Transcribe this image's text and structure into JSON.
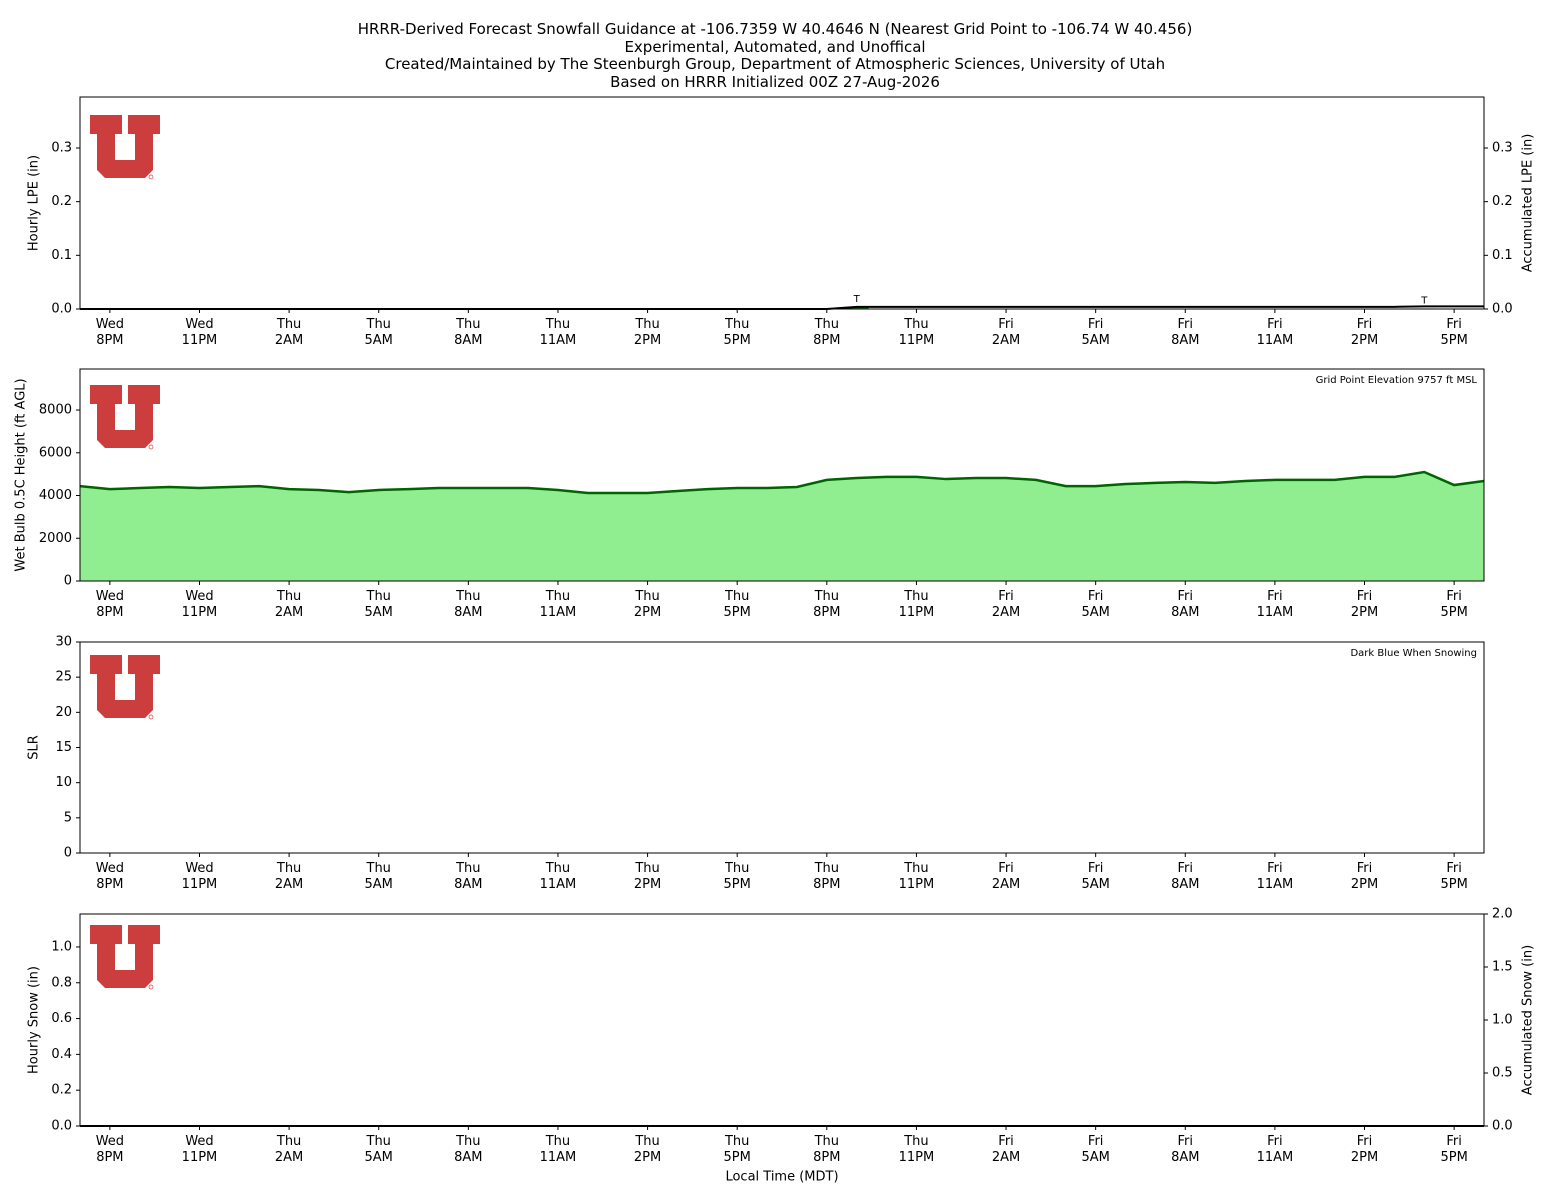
{
  "chart_data": [
    {
      "type": "bar",
      "title": "HRRR-Derived Forecast Snowfall Guidance at -106.7359 W 40.4646 N (Nearest Grid Point to -106.74 W 40.456)\nExperimental, Automated, and Unoffical\nCreated/Maintained by The Steenburgh Group, Department of Atmospheric Sciences, University of Utah\nBased on HRRR Initialized 00Z 27-Aug-2026",
      "ylabel": "Hourly LPE (in)",
      "y2label": "Accumulated LPE (in)",
      "categories": [
        null,
        "Wed\n8PM",
        null,
        null,
        "Wed\n11PM",
        null,
        null,
        "Thu\n2AM",
        null,
        null,
        "Thu\n5AM",
        null,
        null,
        "Thu\n8AM",
        null,
        null,
        "Thu\n11AM",
        null,
        null,
        "Thu\n2PM",
        null,
        null,
        "Thu\n5PM",
        null,
        null,
        "Thu\n8PM",
        null,
        null,
        "Thu\n11PM",
        null,
        null,
        "Fri\n2AM",
        null,
        null,
        "Fri\n5AM",
        null,
        null,
        "Fri\n8AM",
        null,
        null,
        "Fri\n11AM",
        null,
        null,
        "Fri\n2PM",
        null,
        null,
        "Fri\n5PM",
        null
      ],
      "ylim": [
        0,
        0.395
      ],
      "yticks": [
        {
          "value": 0,
          "label": "0.0"
        },
        0.1,
        0.2,
        0.3
      ],
      "y2lim": [
        0,
        0.395
      ],
      "y2ticks": [
        {
          "value": 0,
          "label": "0.0"
        },
        0.1,
        0.2,
        0.3
      ],
      "series": [
        {
          "color": "#228b22",
          "values": [
            0,
            0,
            0,
            0,
            0,
            0,
            0,
            0,
            0,
            0,
            0,
            0,
            0,
            0,
            0,
            0,
            0,
            0,
            0,
            0,
            0,
            0,
            0,
            0,
            0,
            0,
            0.004,
            0,
            0,
            0,
            0,
            0,
            0,
            0,
            0,
            0,
            0,
            0,
            0,
            0,
            0,
            0,
            0,
            0,
            0,
            0.001,
            0,
            0
          ],
          "value_labels": [
            null,
            null,
            null,
            null,
            null,
            null,
            null,
            null,
            null,
            null,
            null,
            null,
            null,
            null,
            null,
            null,
            null,
            null,
            null,
            null,
            null,
            null,
            null,
            null,
            null,
            null,
            "T",
            null,
            null,
            null,
            null,
            null,
            null,
            null,
            null,
            null,
            null,
            null,
            null,
            null,
            null,
            null,
            null,
            null,
            null,
            "T",
            null,
            null
          ]
        },
        {
          "color": "#000000",
          "axis": "y2",
          "values": [
            0,
            0,
            0,
            0,
            0,
            0,
            0,
            0,
            0,
            0,
            0,
            0,
            0,
            0,
            0,
            0,
            0,
            0,
            0,
            0,
            0,
            0,
            0,
            0,
            0,
            0,
            0.004,
            0.004,
            0.004,
            0.004,
            0.004,
            0.004,
            0.004,
            0.004,
            0.004,
            0.004,
            0.004,
            0.004,
            0.004,
            0.004,
            0.004,
            0.004,
            0.004,
            0.004,
            0.004,
            0.005,
            0.005,
            0.005
          ]
        }
      ]
    },
    {
      "type": "area",
      "ylabel": "Wet Bulb 0.5C Height (ft AGL)",
      "annotation": "Grid Point Elevation 9757 ft MSL",
      "categories": [
        null,
        "Wed\n8PM",
        null,
        null,
        "Wed\n11PM",
        null,
        null,
        "Thu\n2AM",
        null,
        null,
        "Thu\n5AM",
        null,
        null,
        "Thu\n8AM",
        null,
        null,
        "Thu\n11AM",
        null,
        null,
        "Thu\n2PM",
        null,
        null,
        "Thu\n5PM",
        null,
        null,
        "Thu\n8PM",
        null,
        null,
        "Thu\n11PM",
        null,
        null,
        "Fri\n2AM",
        null,
        null,
        "Fri\n5AM",
        null,
        null,
        "Fri\n8AM",
        null,
        null,
        "Fri\n11AM",
        null,
        null,
        "Fri\n2PM",
        null,
        null,
        "Fri\n5PM",
        null
      ],
      "ylim": [
        0,
        9920
      ],
      "yticks": [
        0,
        2000,
        4000,
        6000,
        8000
      ],
      "series": [
        {
          "color": "#90ee90",
          "line_color": "#006400",
          "values": [
            4440,
            4300,
            4350,
            4400,
            4350,
            4400,
            4440,
            4300,
            4260,
            4160,
            4260,
            4300,
            4350,
            4350,
            4350,
            4350,
            4260,
            4120,
            4120,
            4120,
            4210,
            4300,
            4350,
            4350,
            4400,
            4730,
            4820,
            4870,
            4870,
            4770,
            4820,
            4820,
            4730,
            4440,
            4440,
            4540,
            4590,
            4630,
            4590,
            4680,
            4730,
            4730,
            4730,
            4870,
            4870,
            5100,
            4490,
            4680
          ]
        }
      ]
    },
    {
      "type": "line",
      "ylabel": "SLR",
      "annotation": "Dark Blue When Snowing",
      "categories": [
        null,
        "Wed\n8PM",
        null,
        null,
        "Wed\n11PM",
        null,
        null,
        "Thu\n2AM",
        null,
        null,
        "Thu\n5AM",
        null,
        null,
        "Thu\n8AM",
        null,
        null,
        "Thu\n11AM",
        null,
        null,
        "Thu\n2PM",
        null,
        null,
        "Thu\n5PM",
        null,
        null,
        "Thu\n8PM",
        null,
        null,
        "Thu\n11PM",
        null,
        null,
        "Fri\n2AM",
        null,
        null,
        "Fri\n5AM",
        null,
        null,
        "Fri\n8AM",
        null,
        null,
        "Fri\n11AM",
        null,
        null,
        "Fri\n2PM",
        null,
        null,
        "Fri\n5PM",
        null
      ],
      "ylim": [
        0,
        30
      ],
      "yticks": [
        0,
        5,
        10,
        15,
        20,
        25,
        30
      ]
    },
    {
      "type": "bar",
      "ylabel": "Hourly Snow (in)",
      "y2label": "Accumulated Snow (in)",
      "xlabel": "Local Time (MDT)",
      "categories": [
        null,
        "Wed\n8PM",
        null,
        null,
        "Wed\n11PM",
        null,
        null,
        "Thu\n2AM",
        null,
        null,
        "Thu\n5AM",
        null,
        null,
        "Thu\n8AM",
        null,
        null,
        "Thu\n11AM",
        null,
        null,
        "Thu\n2PM",
        null,
        null,
        "Thu\n5PM",
        null,
        null,
        "Thu\n8PM",
        null,
        null,
        "Thu\n11PM",
        null,
        null,
        "Fri\n2AM",
        null,
        null,
        "Fri\n5AM",
        null,
        null,
        "Fri\n8AM",
        null,
        null,
        "Fri\n11AM",
        null,
        null,
        "Fri\n2PM",
        null,
        null,
        "Fri\n5PM",
        null
      ],
      "ylim": [
        0,
        1.184
      ],
      "yticks": [
        {
          "value": 0,
          "label": "0.0"
        },
        0.2,
        0.4,
        0.6,
        0.8,
        {
          "value": 1,
          "label": "1.0"
        }
      ],
      "y2lim": [
        0,
        2
      ],
      "y2ticks": [
        {
          "value": 0,
          "label": "0.0"
        },
        0.5,
        {
          "value": 1,
          "label": "1.0"
        },
        1.5,
        {
          "value": 2,
          "label": "2.0"
        }
      ],
      "series": [
        {
          "color": "#1f3fbf",
          "values": [
            0,
            0,
            0,
            0,
            0,
            0,
            0,
            0,
            0,
            0,
            0,
            0,
            0,
            0,
            0,
            0,
            0,
            0,
            0,
            0,
            0,
            0,
            0,
            0,
            0,
            0,
            0,
            0,
            0,
            0,
            0,
            0,
            0,
            0,
            0,
            0,
            0,
            0,
            0,
            0,
            0,
            0,
            0,
            0,
            0,
            0,
            0,
            0
          ]
        },
        {
          "color": "#000000",
          "axis": "y2",
          "values": [
            0,
            0,
            0,
            0,
            0,
            0,
            0,
            0,
            0,
            0,
            0,
            0,
            0,
            0,
            0,
            0,
            0,
            0,
            0,
            0,
            0,
            0,
            0,
            0,
            0,
            0,
            0,
            0,
            0,
            0,
            0,
            0,
            0,
            0,
            0,
            0,
            0,
            0,
            0,
            0,
            0,
            0,
            0,
            0,
            0,
            0,
            0,
            0
          ]
        }
      ]
    }
  ]
}
